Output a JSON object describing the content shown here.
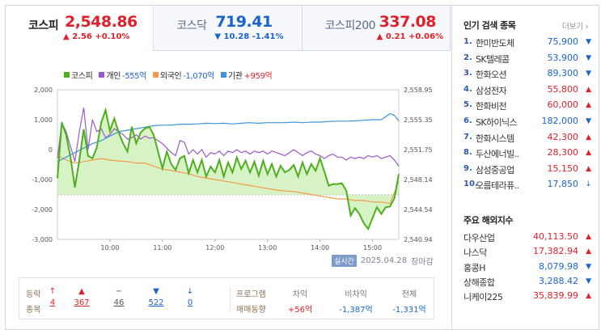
{
  "tabs": [
    {
      "name": "코스피",
      "value": "2,548.86",
      "arrow": "▲",
      "change": "2.56",
      "pct": "+0.10%",
      "dir": "up",
      "active": true
    },
    {
      "name": "코스닥",
      "value": "719.41",
      "arrow": "▼",
      "change": "10.28",
      "pct": "-1.41%",
      "dir": "down",
      "active": false
    },
    {
      "name": "코스피200",
      "value": "337.08",
      "arrow": "▲",
      "change": "0.21",
      "pct": "+0.06%",
      "dir": "up",
      "active": false
    }
  ],
  "legend": [
    {
      "label": "코스피",
      "value": "",
      "color": "#4caf1c",
      "valdir": ""
    },
    {
      "label": "개인",
      "value": "-555억",
      "color": "#9a59c8",
      "valdir": "down"
    },
    {
      "label": "외국인",
      "value": "-1,070억",
      "color": "#f59a4c",
      "valdir": "down"
    },
    {
      "label": "기관",
      "value": "+959억",
      "color": "#3b95de",
      "valdir": "up"
    }
  ],
  "chart_data": {
    "type": "line",
    "left_axis_ticks": [
      "2,000",
      "1,000",
      "0",
      "-1,000",
      "-2,000",
      "-3,000"
    ],
    "right_axis_ticks": [
      "2,558.95",
      "2,555.35",
      "2,551.75",
      "2,548.14",
      "2,544.54",
      "2,540.94"
    ],
    "x_ticks": [
      "10:00",
      "11:00",
      "12:00",
      "13:00",
      "14:00",
      "15:00"
    ],
    "x_range": [
      "09:00",
      "15:30"
    ],
    "left_ylim": [
      -3000,
      2000
    ],
    "right_ylim": [
      2540.94,
      2558.95
    ],
    "reference_line": 2546.3,
    "series": [
      {
        "name": "코스피",
        "axis": "right",
        "color": "#4caf1c",
        "x": [
          0,
          5,
          10,
          15,
          20,
          25,
          30,
          35,
          40,
          45,
          50,
          55,
          60,
          65,
          70,
          75,
          80,
          85,
          90,
          95,
          100,
          105,
          110,
          115,
          120,
          125,
          130,
          135,
          140,
          145,
          150,
          155,
          160,
          165,
          170,
          175,
          180,
          185,
          190,
          195,
          200,
          205,
          210,
          215,
          220,
          225,
          230,
          235,
          240,
          245,
          250,
          255,
          260,
          265,
          270,
          275,
          280,
          285,
          290,
          295,
          300,
          305,
          310,
          315,
          320,
          325,
          330,
          335,
          340,
          345,
          350,
          355,
          360,
          365,
          370,
          375,
          380,
          385,
          390
        ],
        "y": [
          2548.3,
          2555.0,
          2553.5,
          2550.8,
          2547.2,
          2550.5,
          2554.2,
          2551.0,
          2550.7,
          2552.0,
          2555.0,
          2556.5,
          2554.0,
          2555.5,
          2553.8,
          2552.5,
          2551.5,
          2554.5,
          2552.5,
          2553.8,
          2554.3,
          2554.5,
          2553.5,
          2551.5,
          2549.5,
          2551.5,
          2550.0,
          2549.3,
          2550.7,
          2551.0,
          2548.9,
          2550.5,
          2549.0,
          2550.5,
          2548.5,
          2549.7,
          2549.0,
          2550.5,
          2548.5,
          2550.2,
          2549.0,
          2550.8,
          2549.4,
          2550.4,
          2549.0,
          2550.3,
          2548.6,
          2550.4,
          2548.8,
          2550.0,
          2548.5,
          2549.8,
          2549.0,
          2549.3,
          2549.9,
          2548.5,
          2550.2,
          2548.8,
          2550.0,
          2549.2,
          2550.7,
          2549.1,
          2547.4,
          2547.6,
          2547.6,
          2547.7,
          2546.8,
          2543.8,
          2544.7,
          2544.0,
          2542.9,
          2542.2,
          2543.5,
          2544.8,
          2544.0,
          2544.8,
          2544.9,
          2545.9,
          2548.8
        ]
      },
      {
        "name": "개인",
        "axis": "left",
        "color": "#9a59c8",
        "x": [
          0,
          5,
          10,
          15,
          20,
          25,
          30,
          35,
          40,
          45,
          50,
          55,
          60,
          65,
          70,
          75,
          80,
          85,
          90,
          95,
          100,
          105,
          110,
          115,
          120,
          125,
          130,
          135,
          140,
          145,
          150,
          155,
          160,
          165,
          170,
          175,
          180,
          185,
          190,
          195,
          200,
          205,
          210,
          215,
          220,
          225,
          230,
          235,
          240,
          245,
          250,
          255,
          260,
          265,
          270,
          275,
          280,
          285,
          290,
          295,
          300,
          305,
          310,
          315,
          320,
          325,
          330,
          335,
          340,
          345,
          350,
          355,
          360,
          365,
          370,
          375,
          380,
          385,
          390
        ],
        "y": [
          -300,
          900,
          600,
          100,
          -400,
          600,
          1400,
          0,
          1000,
          600,
          700,
          400,
          500,
          700,
          600,
          500,
          350,
          400,
          500,
          350,
          450,
          380,
          400,
          300,
          200,
          50,
          -100,
          -200,
          300,
          250,
          -150,
          0,
          -150,
          0,
          -250,
          -100,
          -150,
          -50,
          -200,
          -50,
          -100,
          0,
          -100,
          -50,
          -150,
          -50,
          -100,
          -50,
          -150,
          -50,
          -100,
          -150,
          -200,
          -100,
          0,
          -100,
          -200,
          -100,
          -50,
          -150,
          -200,
          -300,
          -200,
          -150,
          -250,
          -250,
          -350,
          -250,
          -300,
          -250,
          -300,
          -200,
          -250,
          -200,
          -300,
          -250,
          -200,
          -350,
          -555
        ]
      },
      {
        "name": "외국인",
        "axis": "left",
        "color": "#f59a4c",
        "x": [
          0,
          10,
          20,
          30,
          40,
          50,
          60,
          70,
          80,
          90,
          100,
          110,
          120,
          130,
          140,
          150,
          160,
          170,
          180,
          190,
          200,
          210,
          220,
          230,
          240,
          250,
          260,
          270,
          280,
          290,
          300,
          310,
          320,
          330,
          340,
          350,
          360,
          370,
          380,
          390
        ],
        "y": [
          -200,
          -350,
          -450,
          -400,
          -350,
          -300,
          -350,
          -380,
          -400,
          -450,
          -450,
          -550,
          -650,
          -700,
          -750,
          -800,
          -900,
          -950,
          -1000,
          -1050,
          -1100,
          -1150,
          -1200,
          -1250,
          -1300,
          -1350,
          -1380,
          -1400,
          -1450,
          -1500,
          -1550,
          -1600,
          -1650,
          -1650,
          -1700,
          -1700,
          -1750,
          -1750,
          -1800,
          -1070
        ]
      },
      {
        "name": "기관",
        "axis": "left",
        "color": "#3b95de",
        "x": [
          0,
          10,
          20,
          30,
          40,
          50,
          60,
          70,
          80,
          90,
          100,
          110,
          120,
          130,
          140,
          150,
          160,
          170,
          180,
          190,
          200,
          210,
          220,
          230,
          240,
          250,
          260,
          270,
          280,
          290,
          300,
          310,
          320,
          330,
          340,
          350,
          360,
          370,
          380,
          385,
          390
        ],
        "y": [
          -400,
          -250,
          -100,
          50,
          200,
          300,
          450,
          600,
          650,
          700,
          750,
          800,
          820,
          820,
          850,
          850,
          860,
          880,
          870,
          880,
          860,
          880,
          900,
          880,
          900,
          900,
          900,
          920,
          900,
          920,
          920,
          940,
          950,
          950,
          960,
          980,
          1000,
          1000,
          1200,
          1150,
          959
        ]
      }
    ]
  },
  "meta": {
    "realtime": "실시간",
    "date": "2025.04.28",
    "status": "장마감"
  },
  "stats": {
    "label_top": "등락",
    "label_bottom": "종목",
    "items": [
      {
        "sym": "↑",
        "count": "4",
        "dir": "up"
      },
      {
        "sym": "▲",
        "count": "367",
        "dir": "up"
      },
      {
        "sym": "−",
        "count": "46",
        "dir": "flat"
      },
      {
        "sym": "▼",
        "count": "522",
        "dir": "down"
      },
      {
        "sym": "↓",
        "count": "0",
        "dir": "down"
      }
    ],
    "program_label_top": "프로그램",
    "program_label_bottom": "매매동향",
    "program": [
      {
        "label": "차익",
        "value": "+56억",
        "dir": "up"
      },
      {
        "label": "비차익",
        "value": "-1,387억",
        "dir": "down"
      },
      {
        "label": "전체",
        "value": "-1,331억",
        "dir": "down"
      }
    ]
  },
  "popular": {
    "title": "인기 검색 종목",
    "more": "더보기",
    "items": [
      {
        "no": "1.",
        "name": "한미반도체",
        "price": "75,900",
        "arrow": "▼",
        "dir": "down"
      },
      {
        "no": "2.",
        "name": "SK텔레콤",
        "price": "53,900",
        "arrow": "▼",
        "dir": "down"
      },
      {
        "no": "3.",
        "name": "한화오션",
        "price": "89,300",
        "arrow": "▼",
        "dir": "down"
      },
      {
        "no": "4.",
        "name": "삼성전자",
        "price": "55,800",
        "arrow": "▲",
        "dir": "up"
      },
      {
        "no": "5.",
        "name": "한화비전",
        "price": "60,000",
        "arrow": "▲",
        "dir": "up"
      },
      {
        "no": "6.",
        "name": "SK하이닉스",
        "price": "182,000",
        "arrow": "▼",
        "dir": "down"
      },
      {
        "no": "7.",
        "name": "한화시스템",
        "price": "42,300",
        "arrow": "▲",
        "dir": "up"
      },
      {
        "no": "8.",
        "name": "두산에너빌..",
        "price": "28,300",
        "arrow": "▲",
        "dir": "up"
      },
      {
        "no": "9.",
        "name": "삼성중공업",
        "price": "15,150",
        "arrow": "▲",
        "dir": "up"
      },
      {
        "no": "10.",
        "name": "오름테라퓨..",
        "price": "17,850",
        "arrow": "↓",
        "dir": "down"
      }
    ]
  },
  "world": {
    "title": "주요 해외지수",
    "items": [
      {
        "name": "다우산업",
        "value": "40,113.50",
        "arrow": "▲",
        "dir": "up"
      },
      {
        "name": "나스닥",
        "value": "17,382.94",
        "arrow": "▲",
        "dir": "up"
      },
      {
        "name": "홍콩H",
        "value": "8,079.98",
        "arrow": "▼",
        "dir": "down"
      },
      {
        "name": "상해종합",
        "value": "3,288.42",
        "arrow": "▼",
        "dir": "down"
      },
      {
        "name": "니케이225",
        "value": "35,839.99",
        "arrow": "▲",
        "dir": "up"
      }
    ]
  }
}
